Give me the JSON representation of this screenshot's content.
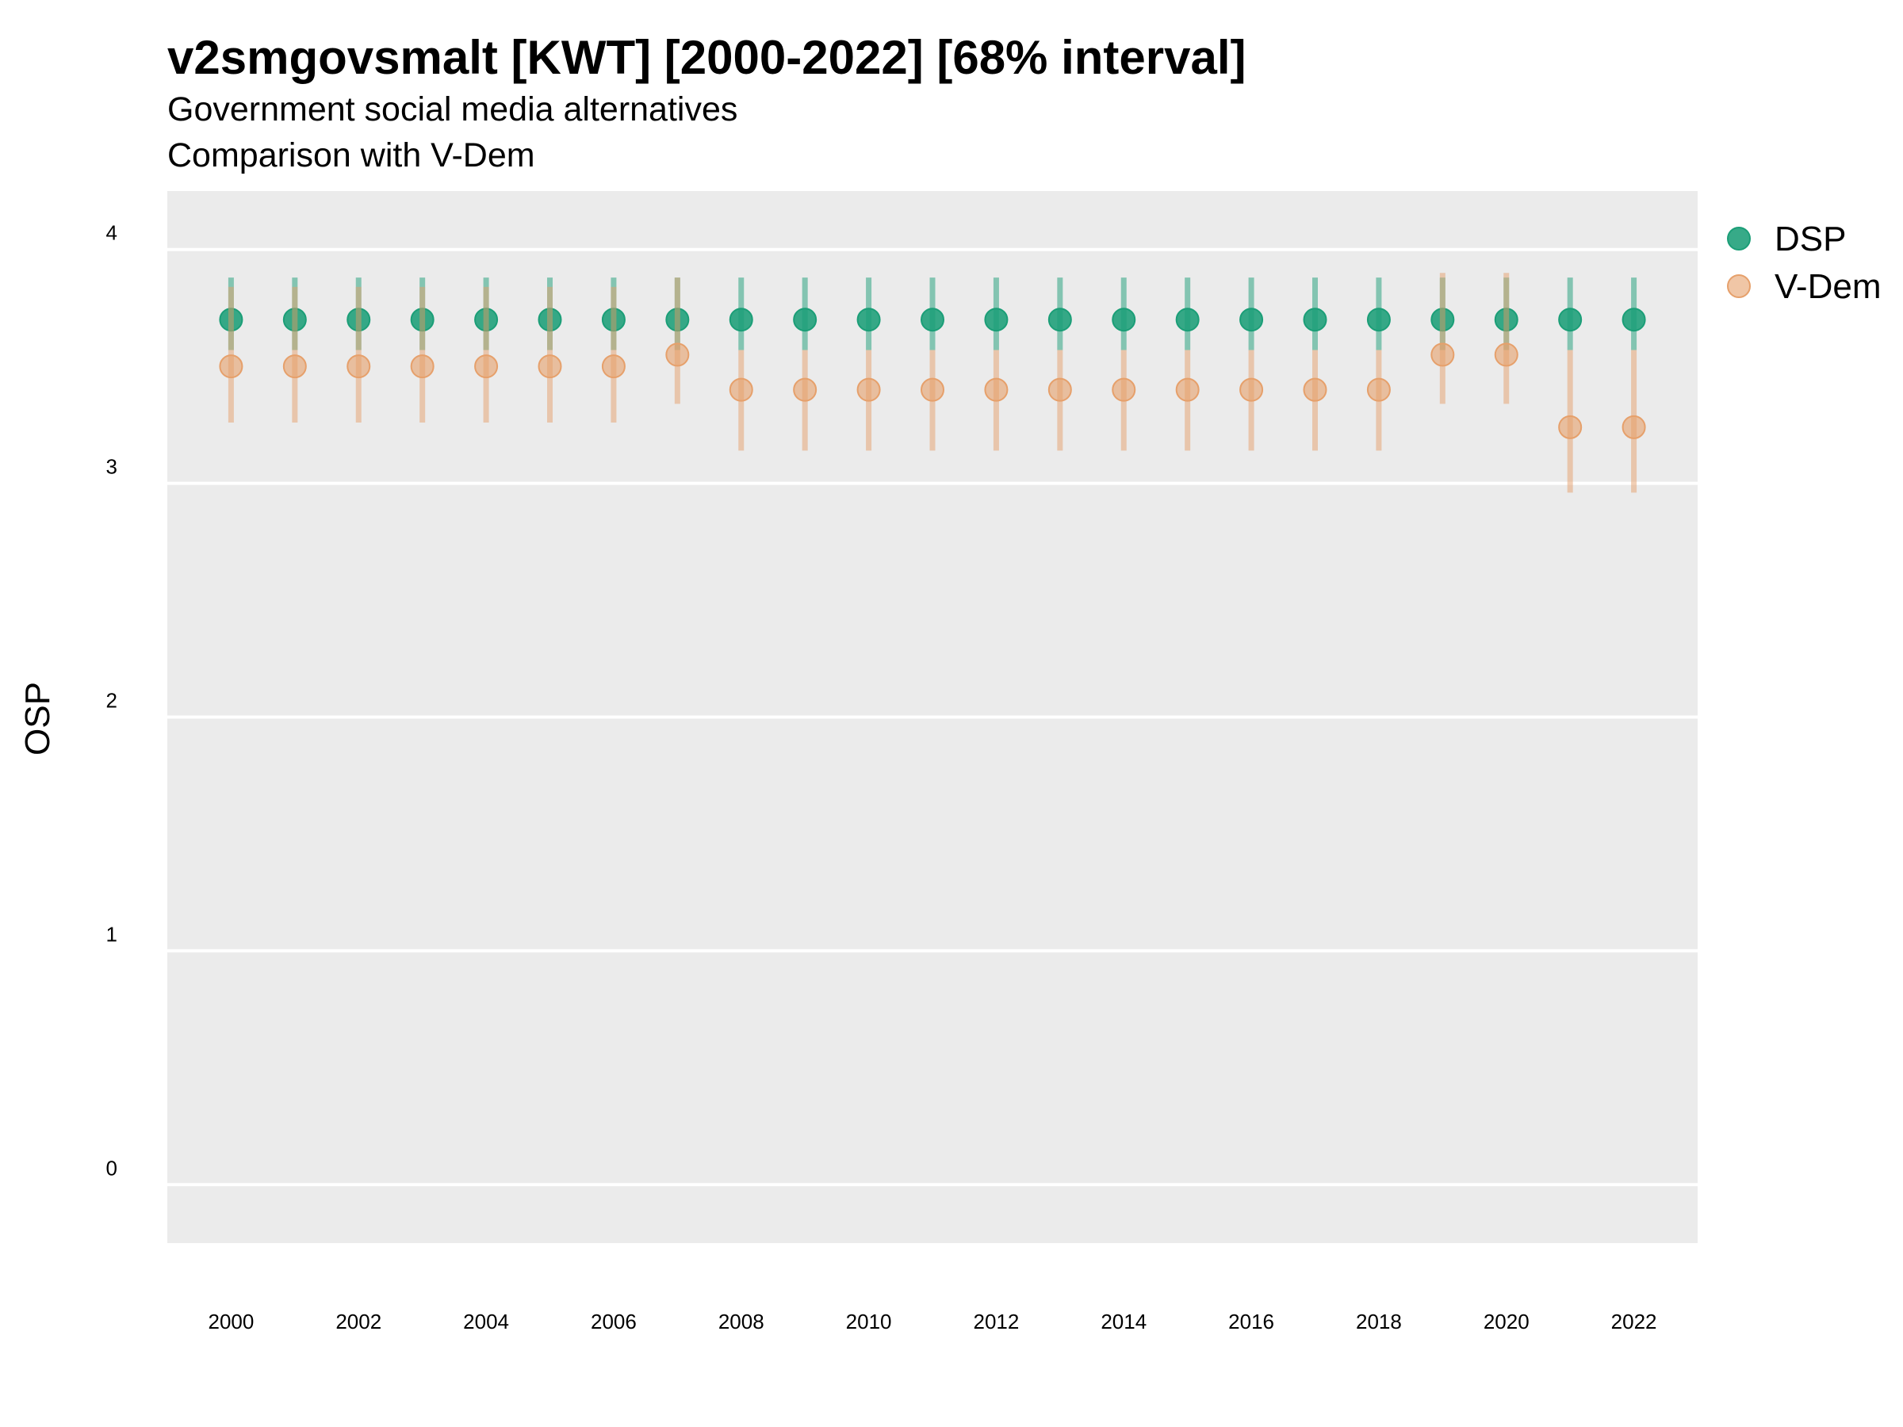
{
  "chart_data": {
    "type": "scatter",
    "title": "v2smgovsmalt [KWT] [2000-2022] [68% interval]",
    "subtitle": "Government social media alternatives",
    "subtitle2": "Comparison with V-Dem",
    "ylabel": "OSP",
    "xlabel": "",
    "ylim": [
      -0.25,
      4.25
    ],
    "xlim": [
      1999,
      2023
    ],
    "yticks": [
      0,
      1,
      2,
      3,
      4
    ],
    "xticks": [
      2000,
      2002,
      2004,
      2006,
      2008,
      2010,
      2012,
      2014,
      2016,
      2018,
      2020,
      2022
    ],
    "grid": true,
    "legend_position": "right",
    "background_color": "#EBEBEB",
    "gridline_color": "#FFFFFF",
    "x": [
      2000,
      2001,
      2002,
      2003,
      2004,
      2005,
      2006,
      2007,
      2008,
      2009,
      2010,
      2011,
      2012,
      2013,
      2014,
      2015,
      2016,
      2017,
      2018,
      2019,
      2020,
      2021,
      2022
    ],
    "series": [
      {
        "name": "DSP",
        "color": "#1B9E77",
        "values": [
          3.7,
          3.7,
          3.7,
          3.7,
          3.7,
          3.7,
          3.7,
          3.7,
          3.7,
          3.7,
          3.7,
          3.7,
          3.7,
          3.7,
          3.7,
          3.7,
          3.7,
          3.7,
          3.7,
          3.7,
          3.7,
          3.7,
          3.7
        ],
        "lower": [
          3.57,
          3.57,
          3.57,
          3.57,
          3.57,
          3.57,
          3.57,
          3.57,
          3.57,
          3.57,
          3.57,
          3.57,
          3.57,
          3.57,
          3.57,
          3.57,
          3.57,
          3.57,
          3.57,
          3.57,
          3.57,
          3.57,
          3.57
        ],
        "upper": [
          3.88,
          3.88,
          3.88,
          3.88,
          3.88,
          3.88,
          3.88,
          3.88,
          3.88,
          3.88,
          3.88,
          3.88,
          3.88,
          3.88,
          3.88,
          3.88,
          3.88,
          3.88,
          3.88,
          3.88,
          3.88,
          3.88,
          3.88
        ]
      },
      {
        "name": "V-Dem",
        "color": "#E6A06B",
        "values": [
          3.5,
          3.5,
          3.5,
          3.5,
          3.5,
          3.5,
          3.5,
          3.55,
          3.4,
          3.4,
          3.4,
          3.4,
          3.4,
          3.4,
          3.4,
          3.4,
          3.4,
          3.4,
          3.4,
          3.55,
          3.55,
          3.24,
          3.24
        ],
        "lower": [
          3.26,
          3.26,
          3.26,
          3.26,
          3.26,
          3.26,
          3.26,
          3.34,
          3.14,
          3.14,
          3.14,
          3.14,
          3.14,
          3.14,
          3.14,
          3.14,
          3.14,
          3.14,
          3.14,
          3.34,
          3.34,
          2.96,
          2.96
        ],
        "upper": [
          3.84,
          3.84,
          3.84,
          3.84,
          3.84,
          3.84,
          3.84,
          3.88,
          3.57,
          3.57,
          3.57,
          3.57,
          3.57,
          3.57,
          3.57,
          3.57,
          3.57,
          3.57,
          3.57,
          3.9,
          3.9,
          3.57,
          3.57
        ]
      }
    ]
  }
}
